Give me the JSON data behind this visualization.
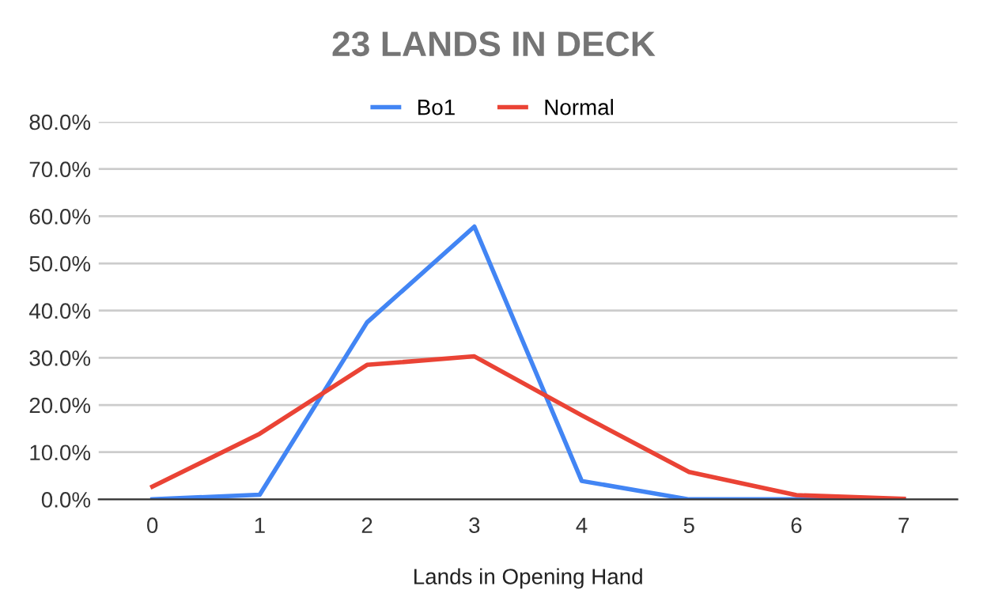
{
  "chart_data": {
    "type": "line",
    "title": "23 LANDS IN DECK",
    "xlabel": "Lands in Opening Hand",
    "categories": [
      "0",
      "1",
      "2",
      "3",
      "4",
      "5",
      "6",
      "7"
    ],
    "series": [
      {
        "name": "Bo1",
        "color": "#4285f4",
        "values": [
          0,
          1.0,
          37.5,
          57.8,
          3.9,
          0,
          0,
          0
        ]
      },
      {
        "name": "Normal",
        "color": "#ea4335",
        "values": [
          2.7,
          13.9,
          28.5,
          30.3,
          17.8,
          5.8,
          0.9,
          0.1
        ]
      }
    ],
    "ylim": [
      0,
      80
    ],
    "yticks": [
      {
        "value": 0,
        "label": "0.0%"
      },
      {
        "value": 10,
        "label": "10.0%"
      },
      {
        "value": 20,
        "label": "20.0%"
      },
      {
        "value": 30,
        "label": "30.0%"
      },
      {
        "value": 40,
        "label": "40.0%"
      },
      {
        "value": 50,
        "label": "50.0%"
      },
      {
        "value": 60,
        "label": "60.0%"
      },
      {
        "value": 70,
        "label": "70.0%"
      },
      {
        "value": 80,
        "label": "80.0%"
      }
    ],
    "grid": "y",
    "legend": "top",
    "marker": "none",
    "line_style": "solid"
  }
}
